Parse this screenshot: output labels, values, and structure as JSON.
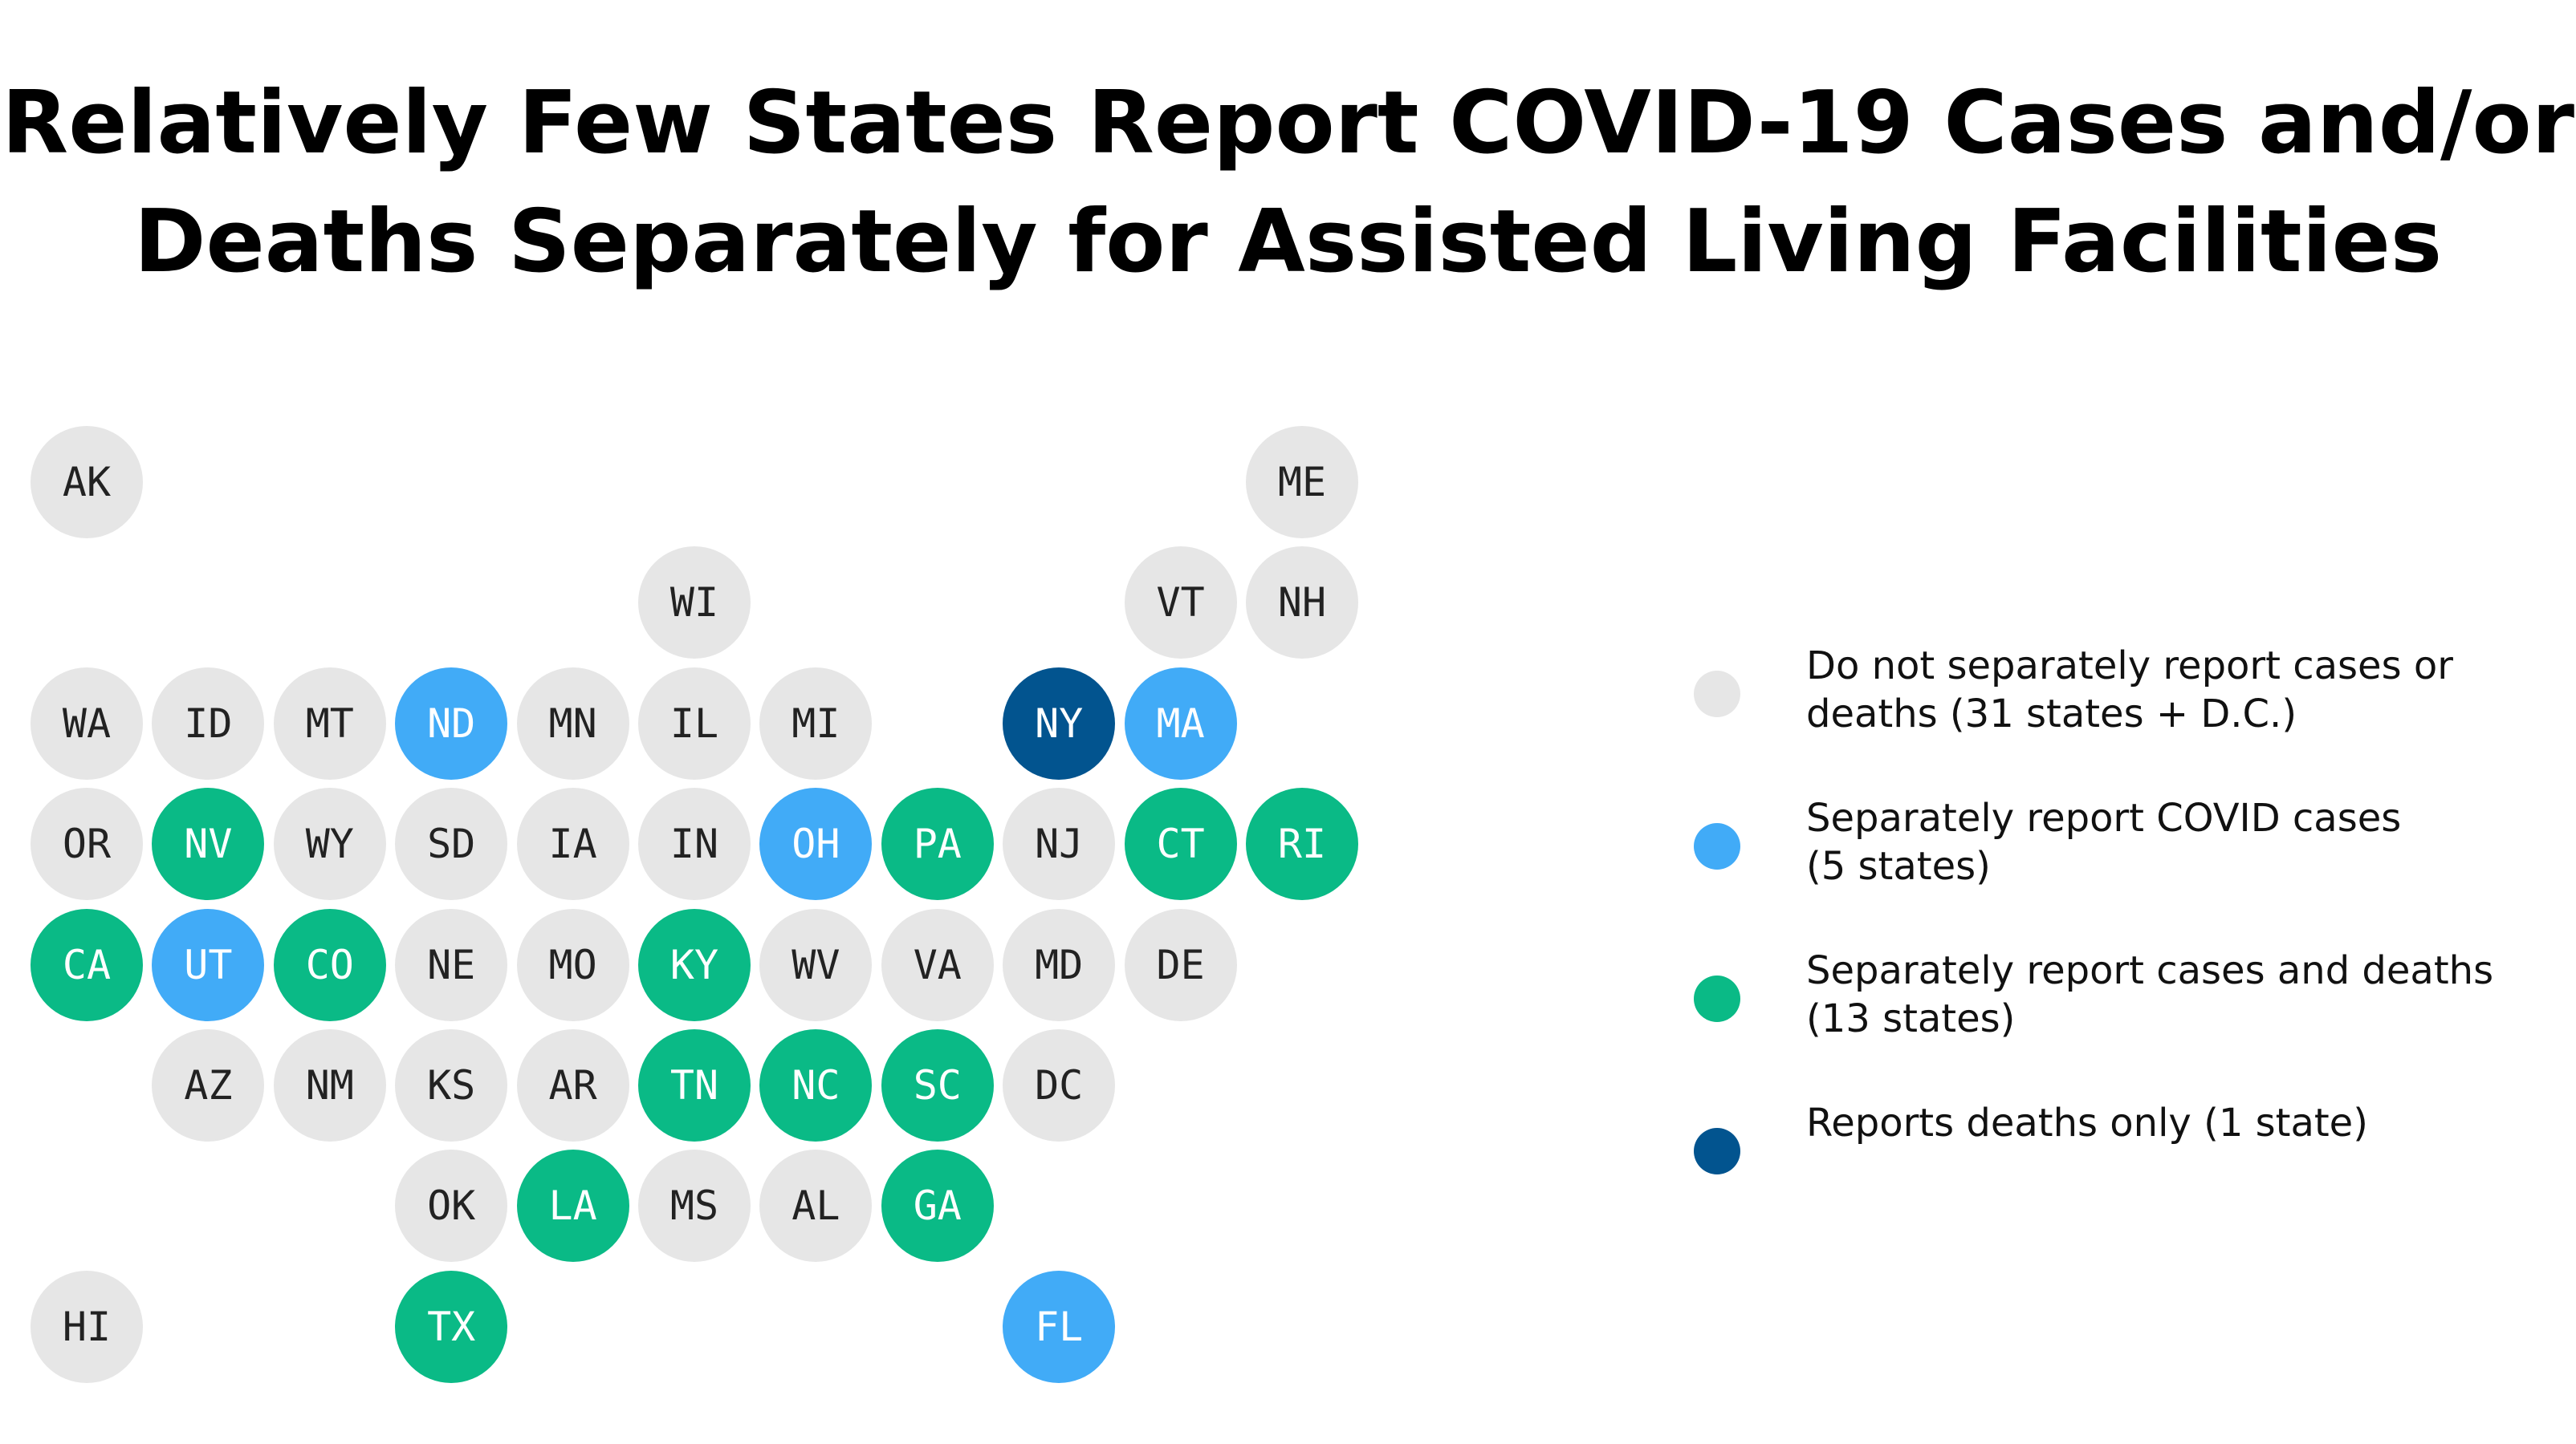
{
  "title_lines": [
    "Relatively Few States Report COVID-19 Cases and/or",
    "Deaths Separately for Assisted Living Facilities"
  ],
  "colors": {
    "none": "#e6e6e6",
    "cases": "#41abf7",
    "cases_deaths": "#0aba86",
    "deaths": "#02548f"
  },
  "legend": [
    {
      "category": "none",
      "text": "Do  not separately report cases or\ndeaths (31 states + D.C.)"
    },
    {
      "category": "cases",
      "text": "Separately report COVID cases\n (5 states)"
    },
    {
      "category": "cases_deaths",
      "text": "Separately report cases and deaths\n(13 states)"
    },
    {
      "category": "deaths",
      "text": "Reports deaths only (1 state)"
    }
  ],
  "states": [
    {
      "abbr": "AK",
      "row": 0,
      "col": 0,
      "category": "none"
    },
    {
      "abbr": "ME",
      "row": 0,
      "col": 10,
      "category": "none"
    },
    {
      "abbr": "WI",
      "row": 1,
      "col": 5,
      "category": "none"
    },
    {
      "abbr": "VT",
      "row": 1,
      "col": 9,
      "category": "none"
    },
    {
      "abbr": "NH",
      "row": 1,
      "col": 10,
      "category": "none"
    },
    {
      "abbr": "WA",
      "row": 2,
      "col": 0,
      "category": "none"
    },
    {
      "abbr": "ID",
      "row": 2,
      "col": 1,
      "category": "none"
    },
    {
      "abbr": "MT",
      "row": 2,
      "col": 2,
      "category": "none"
    },
    {
      "abbr": "ND",
      "row": 2,
      "col": 3,
      "category": "cases"
    },
    {
      "abbr": "MN",
      "row": 2,
      "col": 4,
      "category": "none"
    },
    {
      "abbr": "IL",
      "row": 2,
      "col": 5,
      "category": "none"
    },
    {
      "abbr": "MI",
      "row": 2,
      "col": 6,
      "category": "none"
    },
    {
      "abbr": "NY",
      "row": 2,
      "col": 8,
      "category": "deaths"
    },
    {
      "abbr": "MA",
      "row": 2,
      "col": 9,
      "category": "cases"
    },
    {
      "abbr": "OR",
      "row": 3,
      "col": 0,
      "category": "none"
    },
    {
      "abbr": "NV",
      "row": 3,
      "col": 1,
      "category": "cases_deaths"
    },
    {
      "abbr": "WY",
      "row": 3,
      "col": 2,
      "category": "none"
    },
    {
      "abbr": "SD",
      "row": 3,
      "col": 3,
      "category": "none"
    },
    {
      "abbr": "IA",
      "row": 3,
      "col": 4,
      "category": "none"
    },
    {
      "abbr": "IN",
      "row": 3,
      "col": 5,
      "category": "none"
    },
    {
      "abbr": "OH",
      "row": 3,
      "col": 6,
      "category": "cases"
    },
    {
      "abbr": "PA",
      "row": 3,
      "col": 7,
      "category": "cases_deaths"
    },
    {
      "abbr": "NJ",
      "row": 3,
      "col": 8,
      "category": "none"
    },
    {
      "abbr": "CT",
      "row": 3,
      "col": 9,
      "category": "cases_deaths"
    },
    {
      "abbr": "RI",
      "row": 3,
      "col": 10,
      "category": "cases_deaths"
    },
    {
      "abbr": "CA",
      "row": 4,
      "col": 0,
      "category": "cases_deaths"
    },
    {
      "abbr": "UT",
      "row": 4,
      "col": 1,
      "category": "cases"
    },
    {
      "abbr": "CO",
      "row": 4,
      "col": 2,
      "category": "cases_deaths"
    },
    {
      "abbr": "NE",
      "row": 4,
      "col": 3,
      "category": "none"
    },
    {
      "abbr": "MO",
      "row": 4,
      "col": 4,
      "category": "none"
    },
    {
      "abbr": "KY",
      "row": 4,
      "col": 5,
      "category": "cases_deaths"
    },
    {
      "abbr": "WV",
      "row": 4,
      "col": 6,
      "category": "none"
    },
    {
      "abbr": "VA",
      "row": 4,
      "col": 7,
      "category": "none"
    },
    {
      "abbr": "MD",
      "row": 4,
      "col": 8,
      "category": "none"
    },
    {
      "abbr": "DE",
      "row": 4,
      "col": 9,
      "category": "none"
    },
    {
      "abbr": "AZ",
      "row": 5,
      "col": 1,
      "category": "none"
    },
    {
      "abbr": "NM",
      "row": 5,
      "col": 2,
      "category": "none"
    },
    {
      "abbr": "KS",
      "row": 5,
      "col": 3,
      "category": "none"
    },
    {
      "abbr": "AR",
      "row": 5,
      "col": 4,
      "category": "none"
    },
    {
      "abbr": "TN",
      "row": 5,
      "col": 5,
      "category": "cases_deaths"
    },
    {
      "abbr": "NC",
      "row": 5,
      "col": 6,
      "category": "cases_deaths"
    },
    {
      "abbr": "SC",
      "row": 5,
      "col": 7,
      "category": "cases_deaths"
    },
    {
      "abbr": "DC",
      "row": 5,
      "col": 8,
      "category": "none"
    },
    {
      "abbr": "OK",
      "row": 6,
      "col": 3,
      "category": "none"
    },
    {
      "abbr": "LA",
      "row": 6,
      "col": 4,
      "category": "cases_deaths"
    },
    {
      "abbr": "MS",
      "row": 6,
      "col": 5,
      "category": "none"
    },
    {
      "abbr": "AL",
      "row": 6,
      "col": 6,
      "category": "none"
    },
    {
      "abbr": "GA",
      "row": 6,
      "col": 7,
      "category": "cases_deaths"
    },
    {
      "abbr": "HI",
      "row": 7,
      "col": 0,
      "category": "none"
    },
    {
      "abbr": "TX",
      "row": 7,
      "col": 3,
      "category": "cases_deaths"
    },
    {
      "abbr": "FL",
      "row": 7,
      "col": 8,
      "category": "cases"
    }
  ]
}
